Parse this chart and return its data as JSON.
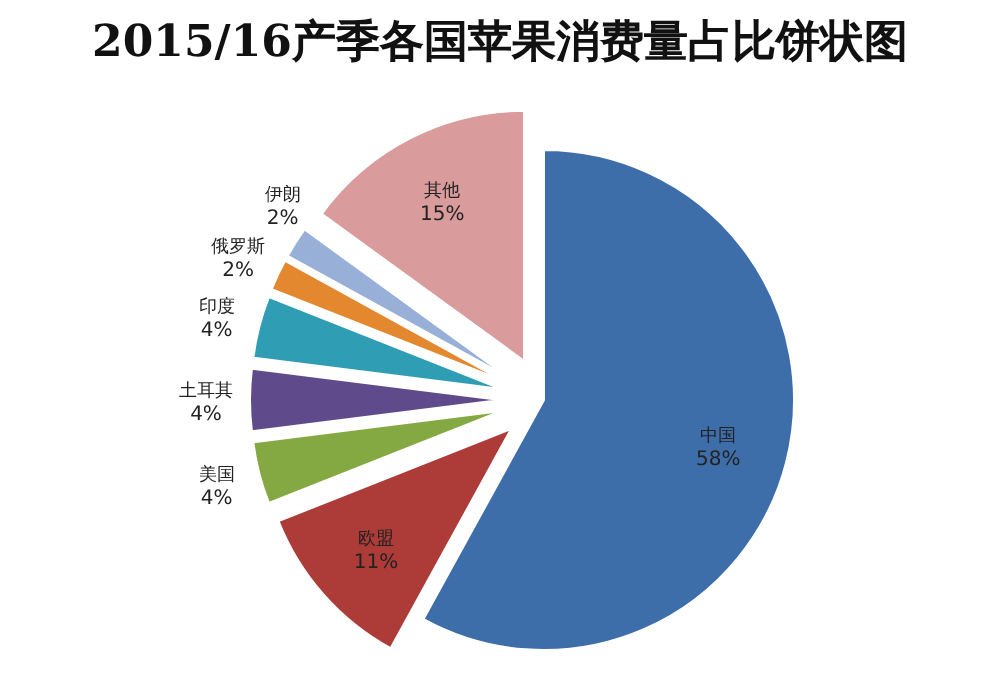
{
  "chart_data": {
    "type": "pie",
    "title": "2015/16产季各国苹果消费量占比饼状图",
    "categories": [
      "中国",
      "欧盟",
      "美国",
      "土耳其",
      "印度",
      "俄罗斯",
      "伊朗",
      "其他"
    ],
    "values": [
      58,
      11,
      4,
      4,
      4,
      2,
      2,
      15
    ],
    "value_labels": [
      "58%",
      "11%",
      "4%",
      "4%",
      "4%",
      "2%",
      "2%",
      "15%"
    ],
    "colors": [
      "#3e6eaa",
      "#ad3b38",
      "#84a842",
      "#5f4b8b",
      "#2f9db4",
      "#e3882f",
      "#98afd8",
      "#d99b9b"
    ]
  }
}
